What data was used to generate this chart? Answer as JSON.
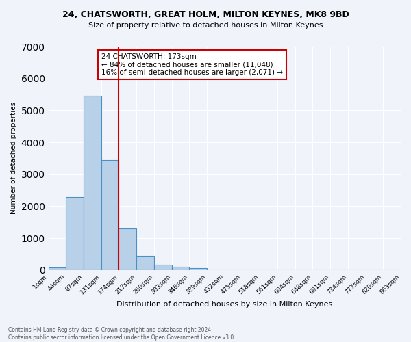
{
  "title1": "24, CHATSWORTH, GREAT HOLM, MILTON KEYNES, MK8 9BD",
  "title2": "Size of property relative to detached houses in Milton Keynes",
  "xlabel": "Distribution of detached houses by size in Milton Keynes",
  "ylabel": "Number of detached properties",
  "footnote1": "Contains HM Land Registry data © Crown copyright and database right 2024.",
  "footnote2": "Contains public sector information licensed under the Open Government Licence v3.0.",
  "bin_labels": [
    "1sqm",
    "44sqm",
    "87sqm",
    "131sqm",
    "174sqm",
    "217sqm",
    "260sqm",
    "303sqm",
    "346sqm",
    "389sqm",
    "432sqm",
    "475sqm",
    "518sqm",
    "561sqm",
    "604sqm",
    "648sqm",
    "691sqm",
    "734sqm",
    "777sqm",
    "820sqm",
    "863sqm"
  ],
  "bar_values": [
    70,
    2280,
    5450,
    3450,
    1310,
    450,
    175,
    95,
    65,
    0,
    0,
    0,
    0,
    0,
    0,
    0,
    0,
    0,
    0,
    0
  ],
  "bar_color": "#b8d0e8",
  "bar_edge_color": "#4a90c4",
  "vline_x": 4,
  "vline_color": "#cc0000",
  "annotation_text": "24 CHATSWORTH: 173sqm\n← 84% of detached houses are smaller (11,048)\n16% of semi-detached houses are larger (2,071) →",
  "annotation_box_color": "#cc0000",
  "bg_color": "#f0f4fa",
  "ylim": [
    0,
    7000
  ],
  "property_bin_index": 4
}
